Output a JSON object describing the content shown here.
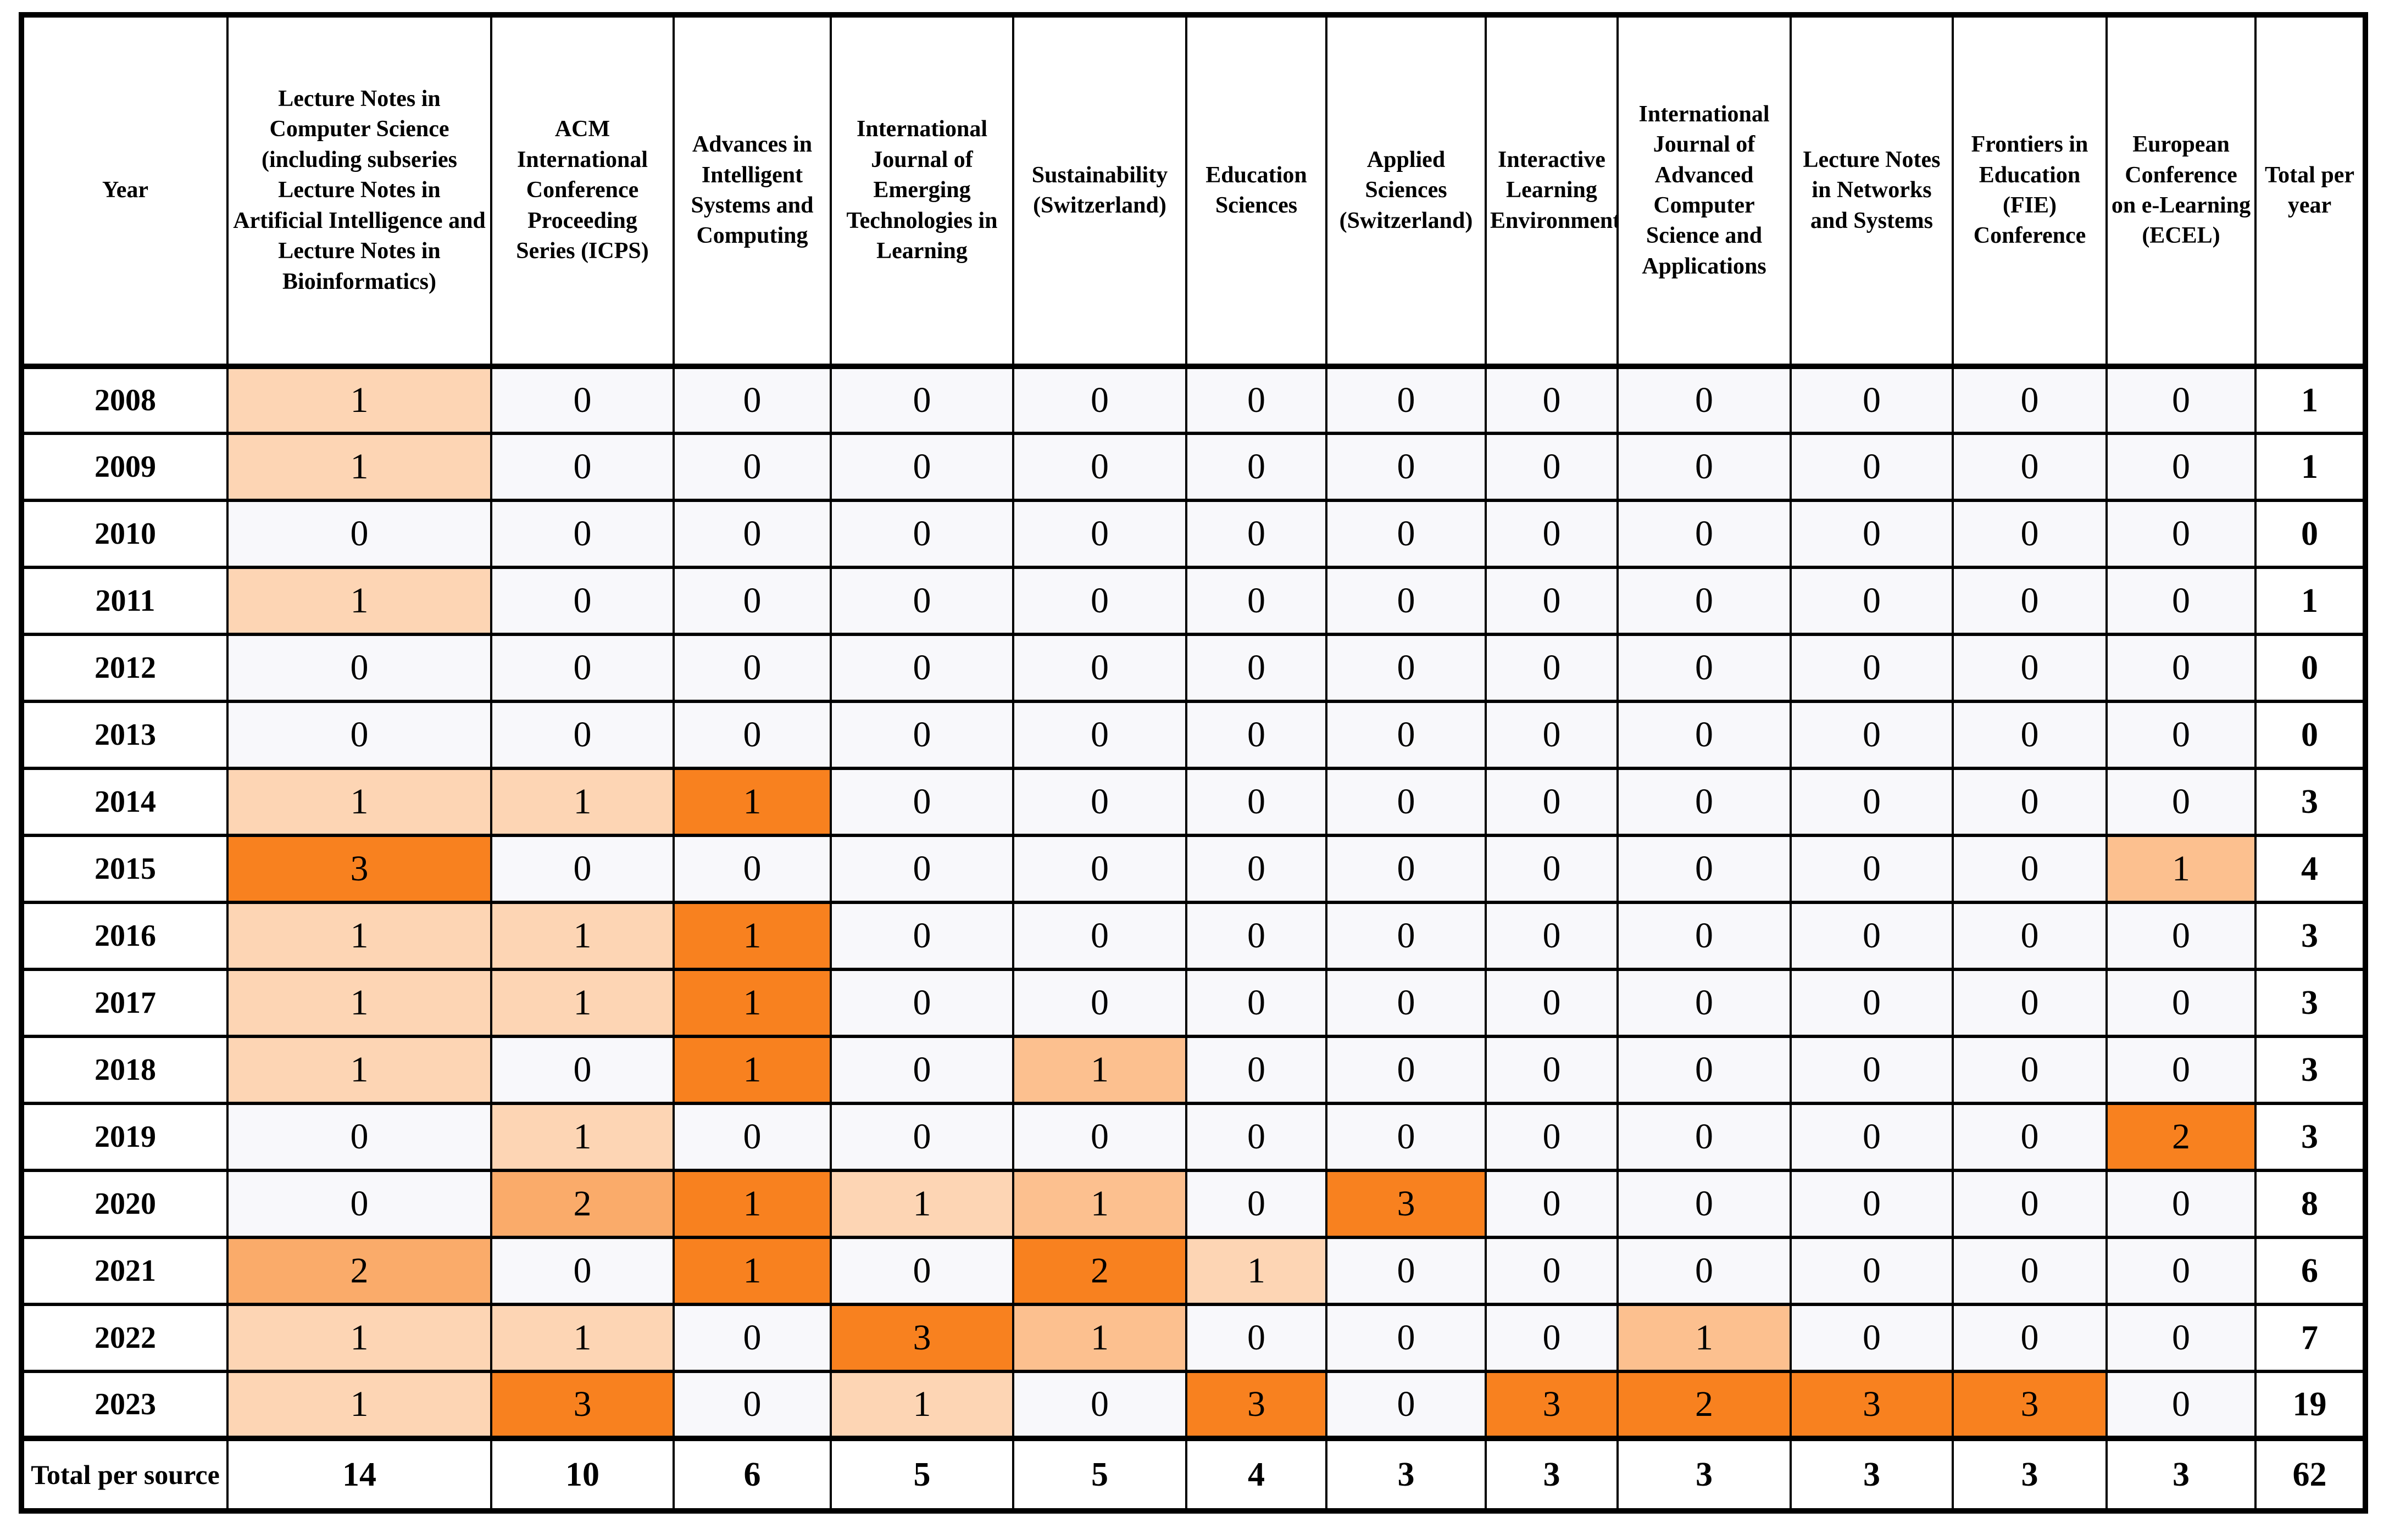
{
  "page": {
    "background": "#FFFFFF"
  },
  "palette": {
    "heat_max_orange": "#F8811F",
    "zero_cell_bg": "#F8F8FB",
    "plain_cell_bg": "#FFFFFF",
    "border_color": "#000000",
    "text_color": "#000000"
  },
  "table": {
    "columns": [
      {
        "key": "year",
        "label": "Year"
      },
      {
        "key": "lncs",
        "label": "Lecture Notes in Computer Science (including subseries Lecture Notes in Artificial Intelligence and Lecture Notes in Bioinformatics)"
      },
      {
        "key": "acm-icps",
        "label": "ACM International Conference Proceeding Series (ICPS)"
      },
      {
        "key": "aisc",
        "label": "Advances in Intelligent Systems and Computing"
      },
      {
        "key": "ijetl",
        "label": "International Journal of Emerging Technologies in Learning"
      },
      {
        "key": "sustainability",
        "label": "Sustainability (Switzerland)"
      },
      {
        "key": "education-sciences",
        "label": "Education Sciences"
      },
      {
        "key": "applied-sciences",
        "label": "Applied Sciences (Switzerland)"
      },
      {
        "key": "interactive-learning-environments",
        "label": "Interactive Learning Environments"
      },
      {
        "key": "ijacsa",
        "label": "International Journal of Advanced Computer Science and Applications"
      },
      {
        "key": "lnns",
        "label": "Lecture Notes in Networks and Systems"
      },
      {
        "key": "fie",
        "label": "Frontiers in Education (FIE) Conference"
      },
      {
        "key": "ecel",
        "label": "European Conference on e-Learning (ECEL)"
      },
      {
        "key": "total-per-year",
        "label": "Total per year"
      }
    ],
    "rows": [
      {
        "year": "2008",
        "values": [
          1,
          0,
          0,
          0,
          0,
          0,
          0,
          0,
          0,
          0,
          0,
          0
        ],
        "total": 1
      },
      {
        "year": "2009",
        "values": [
          1,
          0,
          0,
          0,
          0,
          0,
          0,
          0,
          0,
          0,
          0,
          0
        ],
        "total": 1
      },
      {
        "year": "2010",
        "values": [
          0,
          0,
          0,
          0,
          0,
          0,
          0,
          0,
          0,
          0,
          0,
          0
        ],
        "total": 0
      },
      {
        "year": "2011",
        "values": [
          1,
          0,
          0,
          0,
          0,
          0,
          0,
          0,
          0,
          0,
          0,
          0
        ],
        "total": 1
      },
      {
        "year": "2012",
        "values": [
          0,
          0,
          0,
          0,
          0,
          0,
          0,
          0,
          0,
          0,
          0,
          0
        ],
        "total": 0
      },
      {
        "year": "2013",
        "values": [
          0,
          0,
          0,
          0,
          0,
          0,
          0,
          0,
          0,
          0,
          0,
          0
        ],
        "total": 0
      },
      {
        "year": "2014",
        "values": [
          1,
          1,
          1,
          0,
          0,
          0,
          0,
          0,
          0,
          0,
          0,
          0
        ],
        "total": 3
      },
      {
        "year": "2015",
        "values": [
          3,
          0,
          0,
          0,
          0,
          0,
          0,
          0,
          0,
          0,
          0,
          1
        ],
        "total": 4
      },
      {
        "year": "2016",
        "values": [
          1,
          1,
          1,
          0,
          0,
          0,
          0,
          0,
          0,
          0,
          0,
          0
        ],
        "total": 3
      },
      {
        "year": "2017",
        "values": [
          1,
          1,
          1,
          0,
          0,
          0,
          0,
          0,
          0,
          0,
          0,
          0
        ],
        "total": 3
      },
      {
        "year": "2018",
        "values": [
          1,
          0,
          1,
          0,
          1,
          0,
          0,
          0,
          0,
          0,
          0,
          0
        ],
        "total": 3
      },
      {
        "year": "2019",
        "values": [
          0,
          1,
          0,
          0,
          0,
          0,
          0,
          0,
          0,
          0,
          0,
          2
        ],
        "total": 3
      },
      {
        "year": "2020",
        "values": [
          0,
          2,
          1,
          1,
          1,
          0,
          3,
          0,
          0,
          0,
          0,
          0
        ],
        "total": 8
      },
      {
        "year": "2021",
        "values": [
          2,
          0,
          1,
          0,
          2,
          1,
          0,
          0,
          0,
          0,
          0,
          0
        ],
        "total": 6
      },
      {
        "year": "2022",
        "values": [
          1,
          1,
          0,
          3,
          1,
          0,
          0,
          0,
          1,
          0,
          0,
          0
        ],
        "total": 7
      },
      {
        "year": "2023",
        "values": [
          1,
          3,
          0,
          1,
          0,
          3,
          0,
          3,
          2,
          3,
          3,
          0
        ],
        "total": 19
      }
    ],
    "totals_row": {
      "label": "Total per source",
      "values": [
        14,
        10,
        6,
        5,
        5,
        4,
        3,
        3,
        3,
        3,
        3,
        3
      ],
      "total": 62
    }
  }
}
